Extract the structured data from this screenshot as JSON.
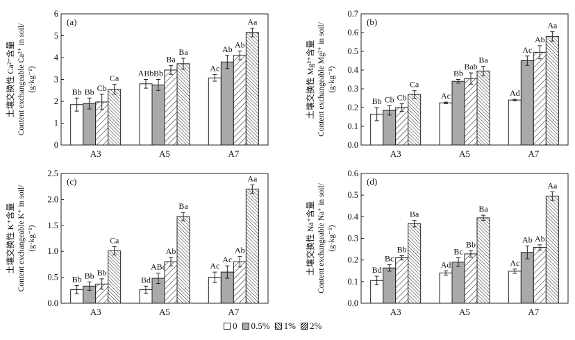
{
  "legend": [
    "0",
    "0.5%",
    "1%",
    "2%"
  ],
  "fills": {
    "s0": "#ffffff",
    "s1": "#a9a9a9",
    "s2": "hatch-wide",
    "s3": "hatch-dense"
  },
  "chart_data": [
    {
      "type": "bar",
      "panel_label": "(a)",
      "ylabel_cn": "土壤交换性 Ca²⁺含量",
      "ylabel_en": "Content exchangeable Ca²⁺ in soil/",
      "ylabel_unit": "(g·kg⁻¹)",
      "categories": [
        "A3",
        "A5",
        "A7"
      ],
      "ylim": [
        0,
        6
      ],
      "yticks": [
        0,
        1,
        2,
        3,
        4,
        5,
        6
      ],
      "tick_decimals": 0,
      "series": [
        {
          "name": "0",
          "values": [
            1.85,
            2.8,
            3.07
          ],
          "errors": [
            0.3,
            0.2,
            0.15
          ],
          "labels": [
            "Bb",
            "ABb",
            "Ac"
          ]
        },
        {
          "name": "0.5%",
          "values": [
            1.9,
            2.75,
            3.8
          ],
          "errors": [
            0.25,
            0.25,
            0.3
          ],
          "labels": [
            "Bb",
            "Bb",
            "Ab"
          ]
        },
        {
          "name": "1%",
          "values": [
            1.97,
            3.43,
            4.1
          ],
          "errors": [
            0.35,
            0.2,
            0.2
          ],
          "labels": [
            "Cb",
            "Ba",
            "Ab"
          ]
        },
        {
          "name": "2%",
          "values": [
            2.55,
            3.72,
            5.15
          ],
          "errors": [
            0.22,
            0.25,
            0.2
          ],
          "labels": [
            "Ca",
            "Ba",
            "Aa"
          ]
        }
      ]
    },
    {
      "type": "bar",
      "panel_label": "(b)",
      "ylabel_cn": "土壤交换性 Mg²⁺含量",
      "ylabel_en": "Content exchangeable Mg²⁺ in soil/",
      "ylabel_unit": "(g·kg⁻¹)",
      "categories": [
        "A3",
        "A5",
        "A7"
      ],
      "ylim": [
        0,
        0.7
      ],
      "yticks": [
        0,
        0.1,
        0.2,
        0.3,
        0.4,
        0.5,
        0.6,
        0.7
      ],
      "tick_decimals": 1,
      "series": [
        {
          "name": "0",
          "values": [
            0.165,
            0.225,
            0.24
          ],
          "errors": [
            0.035,
            0.004,
            0.004
          ],
          "labels": [
            "Bb",
            "Ac",
            "Ad"
          ]
        },
        {
          "name": "0.5%",
          "values": [
            0.185,
            0.34,
            0.45
          ],
          "errors": [
            0.025,
            0.01,
            0.025
          ],
          "labels": [
            "Cb",
            "Bb",
            "Ac"
          ]
        },
        {
          "name": "1%",
          "values": [
            0.2,
            0.355,
            0.495
          ],
          "errors": [
            0.02,
            0.03,
            0.035
          ],
          "labels": [
            "Cb",
            "Bab",
            "Ab"
          ]
        },
        {
          "name": "2%",
          "values": [
            0.27,
            0.395,
            0.58
          ],
          "errors": [
            0.02,
            0.025,
            0.025
          ],
          "labels": [
            "Ca",
            "Ba",
            "Aa"
          ]
        }
      ]
    },
    {
      "type": "bar",
      "panel_label": "(c)",
      "ylabel_cn": "土壤交换性 K⁺含量",
      "ylabel_en": "Content exchangeable K⁺ in soil/",
      "ylabel_unit": "(g·kg⁻¹)",
      "categories": [
        "A3",
        "A5",
        "A7"
      ],
      "ylim": [
        0,
        2.5
      ],
      "yticks": [
        0,
        0.5,
        1.0,
        1.5,
        2.0,
        2.5
      ],
      "tick_decimals": 1,
      "series": [
        {
          "name": "0",
          "values": [
            0.26,
            0.26,
            0.5
          ],
          "errors": [
            0.08,
            0.07,
            0.1
          ],
          "labels": [
            "Bb",
            "Bd",
            "Ac"
          ]
        },
        {
          "name": "0.5%",
          "values": [
            0.33,
            0.48,
            0.6
          ],
          "errors": [
            0.08,
            0.1,
            0.12
          ],
          "labels": [
            "Bb",
            "ABc",
            "Ac"
          ]
        },
        {
          "name": "1%",
          "values": [
            0.37,
            0.8,
            0.8
          ],
          "errors": [
            0.1,
            0.08,
            0.1
          ],
          "labels": [
            "Bb",
            "Ab",
            "Ab"
          ]
        },
        {
          "name": "2%",
          "values": [
            1.01,
            1.67,
            2.2
          ],
          "errors": [
            0.08,
            0.08,
            0.08
          ],
          "labels": [
            "Ca",
            "Ba",
            "Aa"
          ]
        }
      ]
    },
    {
      "type": "bar",
      "panel_label": "(d)",
      "ylabel_cn": "土壤交换性 Na⁺含量",
      "ylabel_en": "Content exchangeable Na⁺ in soil/",
      "ylabel_unit": "(g·kg⁻¹)",
      "categories": [
        "A3",
        "A5",
        "A7"
      ],
      "ylim": [
        0,
        0.6
      ],
      "yticks": [
        0,
        0.1,
        0.2,
        0.3,
        0.4,
        0.5,
        0.6
      ],
      "tick_decimals": 1,
      "series": [
        {
          "name": "0",
          "values": [
            0.105,
            0.14,
            0.148
          ],
          "errors": [
            0.02,
            0.01,
            0.01
          ],
          "labels": [
            "Bd",
            "Ad",
            "Ac"
          ]
        },
        {
          "name": "0.5%",
          "values": [
            0.163,
            0.19,
            0.235
          ],
          "errors": [
            0.015,
            0.02,
            0.03
          ],
          "labels": [
            "Bc",
            "Bc",
            "Ab"
          ]
        },
        {
          "name": "1%",
          "values": [
            0.21,
            0.228,
            0.258
          ],
          "errors": [
            0.01,
            0.015,
            0.012
          ],
          "labels": [
            "Bb",
            "Bb",
            "Ab"
          ]
        },
        {
          "name": "2%",
          "values": [
            0.368,
            0.395,
            0.495
          ],
          "errors": [
            0.015,
            0.012,
            0.02
          ],
          "labels": [
            "Ba",
            "Ba",
            "Aa"
          ]
        }
      ]
    }
  ]
}
